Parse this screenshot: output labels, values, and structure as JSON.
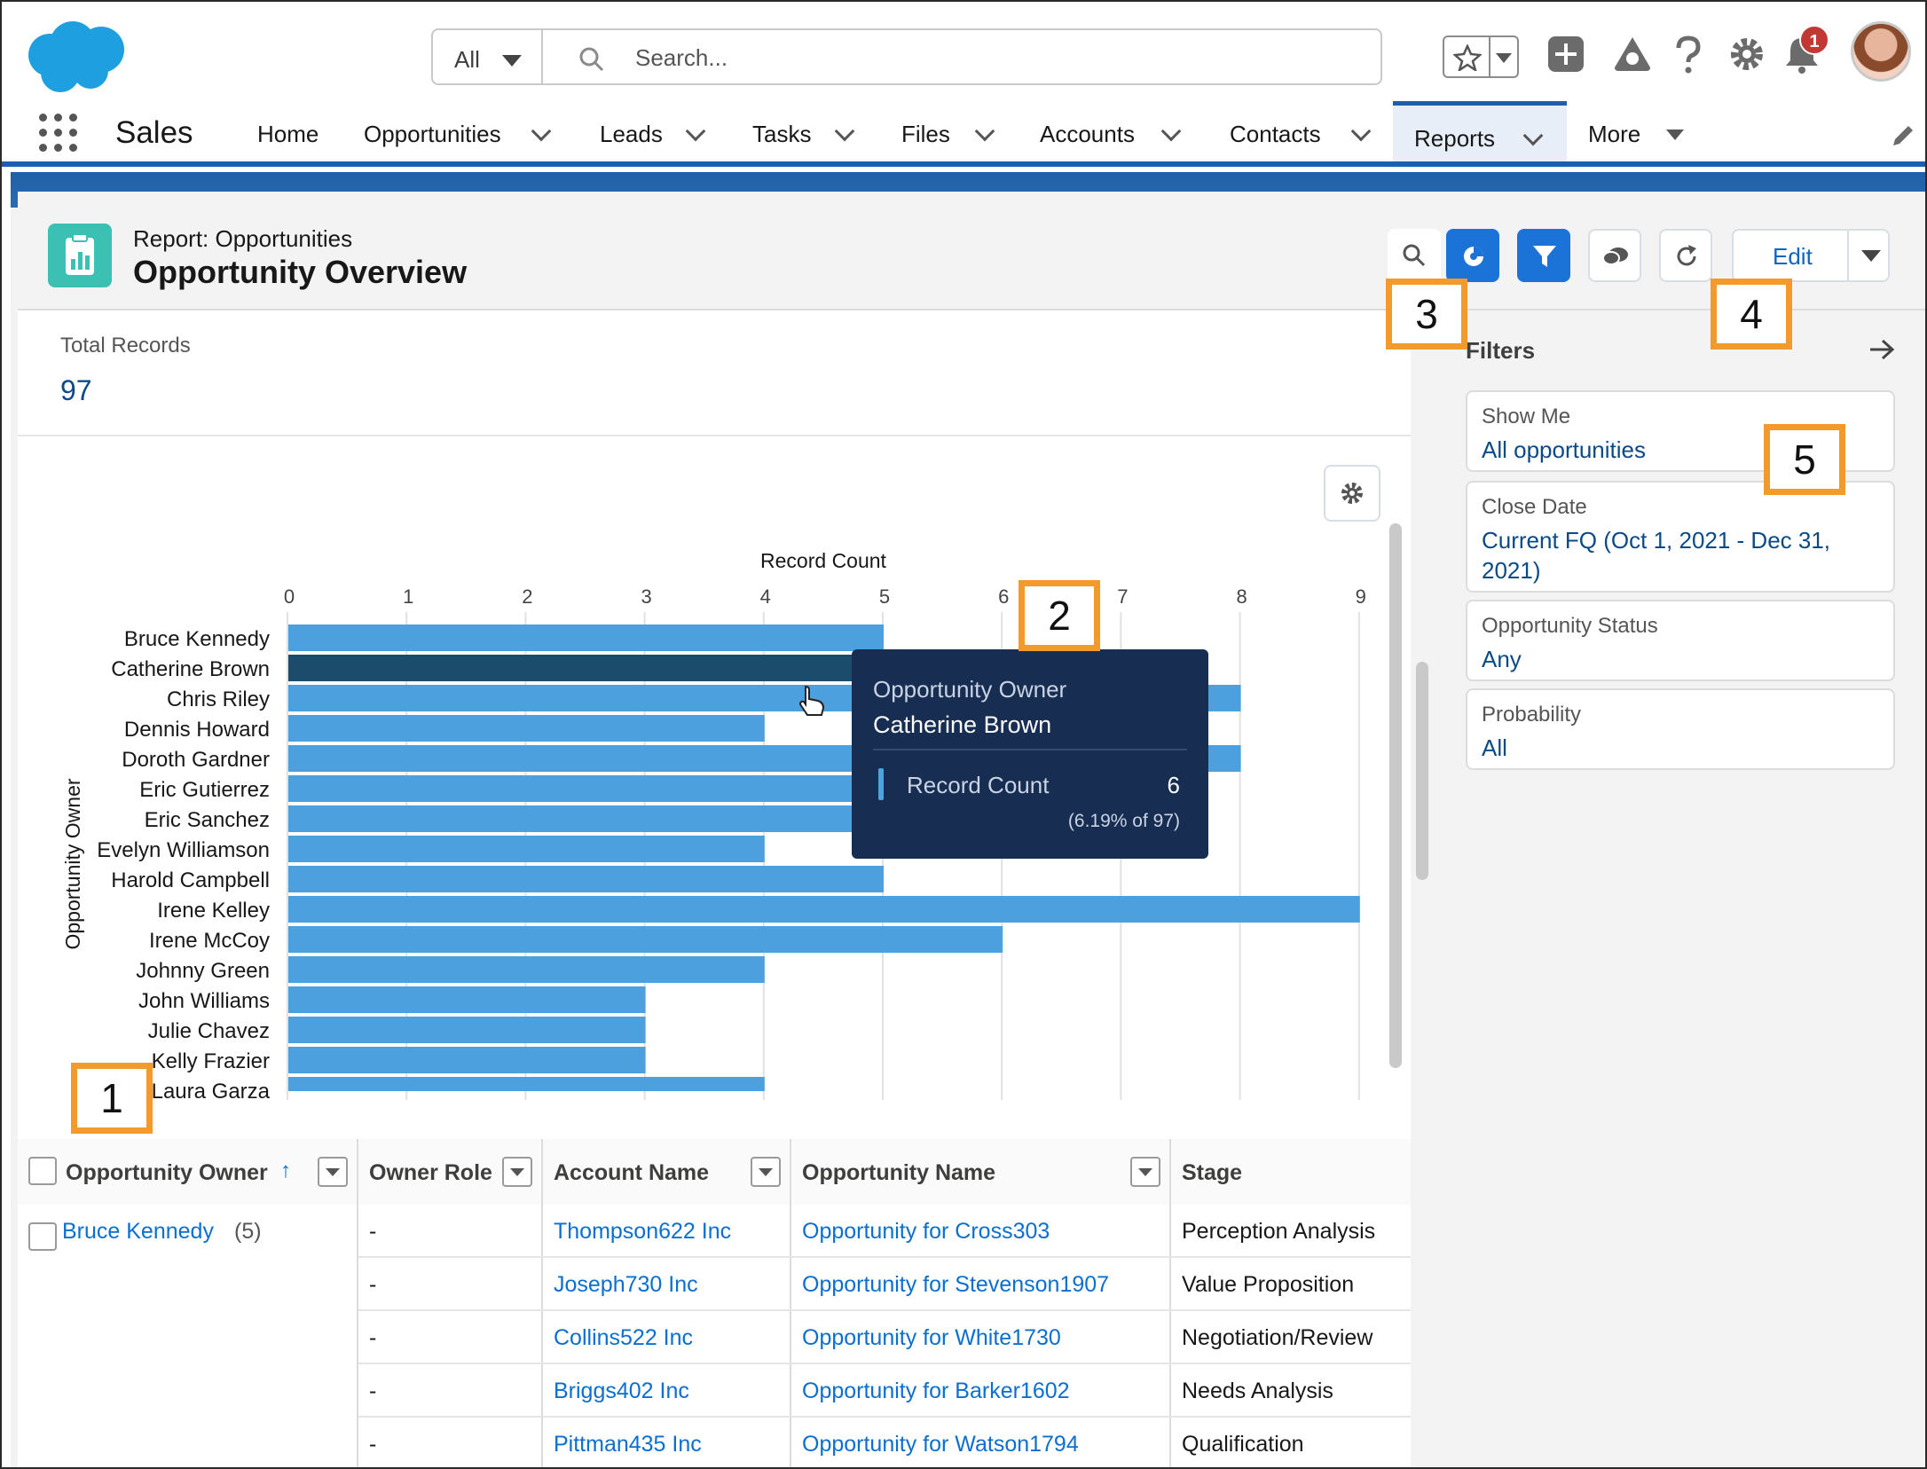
{
  "header_bar": {
    "search_scope": "All",
    "search_placeholder": "Search...",
    "notification_count": "1"
  },
  "nav": {
    "app_name": "Sales",
    "items": [
      {
        "label": "Home",
        "has_menu": false
      },
      {
        "label": "Opportunities",
        "has_menu": true
      },
      {
        "label": "Leads",
        "has_menu": true
      },
      {
        "label": "Tasks",
        "has_menu": true
      },
      {
        "label": "Files",
        "has_menu": true
      },
      {
        "label": "Accounts",
        "has_menu": true
      },
      {
        "label": "Contacts",
        "has_menu": true
      },
      {
        "label": "Reports",
        "has_menu": true,
        "active": true
      },
      {
        "label": "More",
        "has_menu": true
      }
    ]
  },
  "report": {
    "type_label": "Report: Opportunities",
    "title": "Opportunity Overview",
    "edit_label": "Edit",
    "total_records_label": "Total Records",
    "total_records_value": "97"
  },
  "chart_data": {
    "type": "bar",
    "orientation": "horizontal",
    "xlabel": "Record Count",
    "ylabel": "Opportunity Owner",
    "xlim": [
      0,
      9
    ],
    "x_ticks": [
      "0",
      "1",
      "2",
      "3",
      "4",
      "5",
      "6",
      "7",
      "8",
      "9"
    ],
    "categories": [
      "Bruce Kennedy",
      "Catherine Brown",
      "Chris Riley",
      "Dennis Howard",
      "Doroth Gardner",
      "Eric Gutierrez",
      "Eric Sanchez",
      "Evelyn Williamson",
      "Harold Campbell",
      "Irene Kelley",
      "Irene McCoy",
      "Johnny Green",
      "John Williams",
      "Julie Chavez",
      "Kelly Frazier",
      "Laura Garza"
    ],
    "values": [
      5,
      6,
      8,
      4,
      8,
      5,
      5,
      4,
      5,
      9,
      6,
      4,
      3,
      3,
      3,
      4
    ],
    "highlighted": "Catherine Brown",
    "colors": {
      "bar": "#4ba0dd",
      "highlight": "#1b4c6b"
    }
  },
  "tooltip": {
    "owner_label": "Opportunity Owner",
    "owner": "Catherine Brown",
    "metric_label": "Record Count",
    "value": "6",
    "percent": "(6.19% of 97)"
  },
  "table": {
    "columns": [
      "Opportunity Owner",
      "Owner Role",
      "Account Name",
      "Opportunity Name",
      "Stage"
    ],
    "group_owner": "Bruce Kennedy",
    "group_count": "(5)",
    "rows": [
      {
        "role": "-",
        "account": "Thompson622 Inc",
        "opportunity": "Opportunity for Cross303",
        "stage": "Perception Analysis"
      },
      {
        "role": "-",
        "account": "Joseph730 Inc",
        "opportunity": "Opportunity for Stevenson1907",
        "stage": "Value Proposition"
      },
      {
        "role": "-",
        "account": "Collins522 Inc",
        "opportunity": "Opportunity for White1730",
        "stage": "Negotiation/Review"
      },
      {
        "role": "-",
        "account": "Briggs402 Inc",
        "opportunity": "Opportunity for Barker1602",
        "stage": "Needs Analysis"
      },
      {
        "role": "-",
        "account": "Pittman435 Inc",
        "opportunity": "Opportunity for Watson1794",
        "stage": "Qualification"
      }
    ]
  },
  "filters": {
    "title": "Filters",
    "items": [
      {
        "label": "Show Me",
        "value": "All opportunities"
      },
      {
        "label": "Close Date",
        "value": "Current FQ (Oct 1, 2021 - Dec 31, 2021)"
      },
      {
        "label": "Opportunity Status",
        "value": "Any"
      },
      {
        "label": "Probability",
        "value": "All"
      }
    ]
  },
  "callouts": [
    "1",
    "2",
    "3",
    "4",
    "5"
  ],
  "colors": {
    "brand_blue": "#1b73d8",
    "link": "#0b6fcf",
    "callout_orange": "#f39a2c"
  }
}
